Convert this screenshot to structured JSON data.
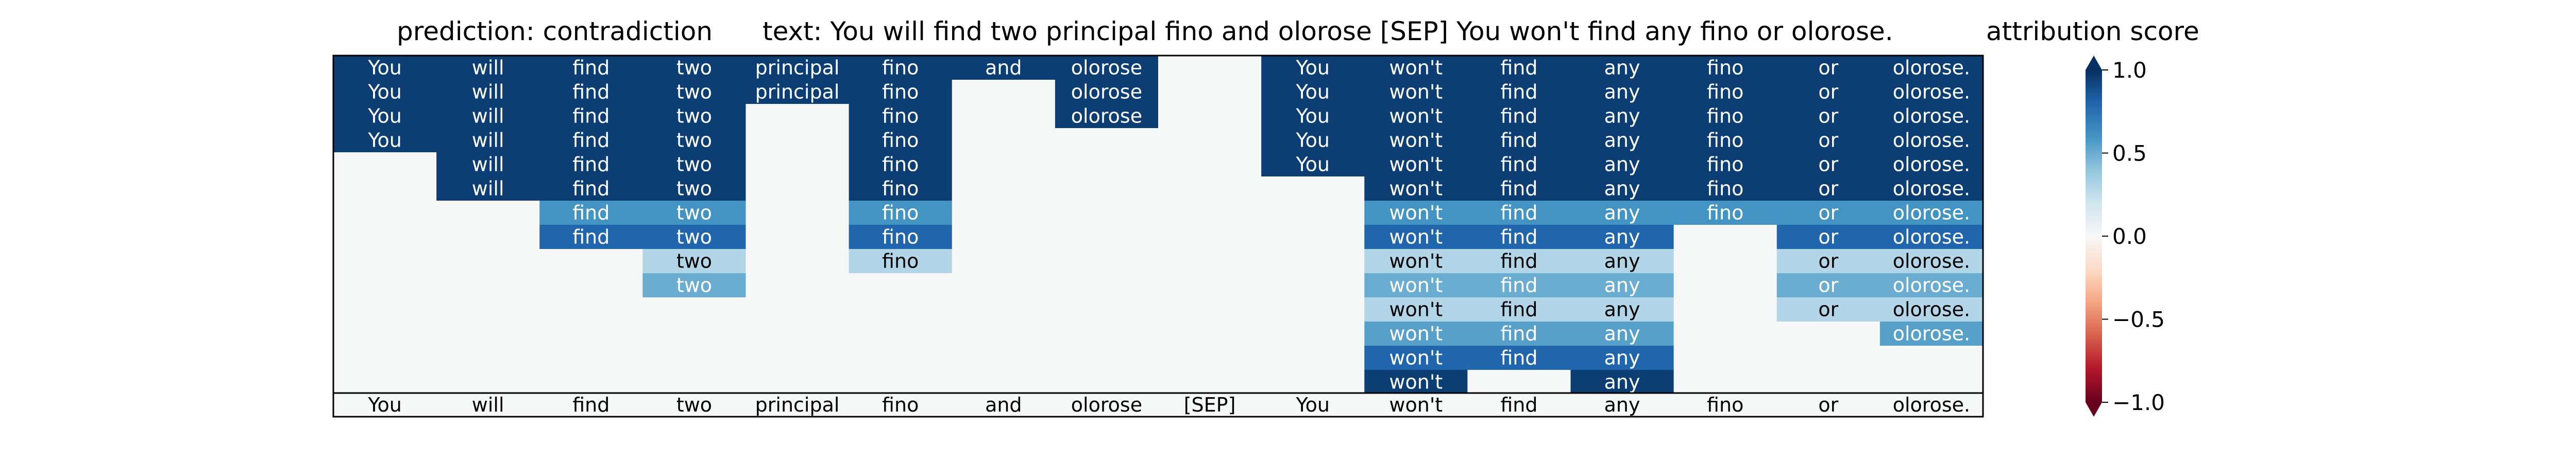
{
  "titles": {
    "prediction": "prediction:  contradiction",
    "text": "text:  You will find two principal fino and olorose [SEP] You won't find any fino or olorose.",
    "colorbar": "attribution score"
  },
  "colors": {
    "background_cell": "#f5f7f7",
    "dark_text": "#000000",
    "light_text": "#ffffff",
    "colormap": "RdBu"
  },
  "chart_data": {
    "type": "heatmap",
    "colorbar": {
      "ticks": [
        1.0,
        0.5,
        0.0,
        -0.5,
        -1.0
      ],
      "tick_labels": [
        "1.0",
        "0.5",
        "0.0",
        "−0.5",
        "−1.0"
      ],
      "vmin": -1.0,
      "vmax": 1.0,
      "extend": "both"
    },
    "columns": [
      "You",
      "will",
      "find",
      "two",
      "principal",
      "fino",
      "and",
      "olorose",
      "[SEP]",
      "You",
      "won't",
      "find",
      "any",
      "fino",
      "or",
      "olorose."
    ],
    "bottom_row": [
      "You",
      "will",
      "find",
      "two",
      "principal",
      "fino",
      "and",
      "olorose",
      "[SEP]",
      "You",
      "won't",
      "find",
      "any",
      "fino",
      "or",
      "olorose."
    ],
    "rows": [
      [
        0.95,
        0.95,
        0.95,
        0.95,
        0.95,
        0.95,
        0.95,
        0.95,
        null,
        0.95,
        0.95,
        0.95,
        0.95,
        0.95,
        0.95,
        0.95
      ],
      [
        0.95,
        0.95,
        0.95,
        0.95,
        0.95,
        0.95,
        null,
        0.95,
        null,
        0.95,
        0.95,
        0.95,
        0.95,
        0.95,
        0.95,
        0.95
      ],
      [
        0.95,
        0.95,
        0.95,
        0.95,
        null,
        0.95,
        null,
        0.95,
        null,
        0.95,
        0.95,
        0.95,
        0.95,
        0.95,
        0.95,
        0.95
      ],
      [
        0.95,
        0.95,
        0.95,
        0.95,
        null,
        0.95,
        null,
        null,
        null,
        0.95,
        0.95,
        0.95,
        0.95,
        0.95,
        0.95,
        0.95
      ],
      [
        null,
        0.95,
        0.95,
        0.95,
        null,
        0.95,
        null,
        null,
        null,
        0.95,
        0.95,
        0.95,
        0.95,
        0.95,
        0.95,
        0.95
      ],
      [
        null,
        0.95,
        0.95,
        0.95,
        null,
        0.95,
        null,
        null,
        null,
        null,
        0.95,
        0.95,
        0.95,
        0.95,
        0.95,
        0.95
      ],
      [
        null,
        null,
        0.6,
        0.6,
        null,
        0.6,
        null,
        null,
        null,
        null,
        0.6,
        0.6,
        0.6,
        0.6,
        0.6,
        0.6
      ],
      [
        null,
        null,
        0.8,
        0.8,
        null,
        0.8,
        null,
        null,
        null,
        null,
        0.8,
        0.8,
        0.8,
        null,
        0.8,
        0.8
      ],
      [
        null,
        null,
        null,
        0.3,
        null,
        0.3,
        null,
        null,
        null,
        null,
        0.3,
        0.3,
        0.3,
        null,
        0.3,
        0.3
      ],
      [
        null,
        null,
        null,
        0.5,
        null,
        null,
        null,
        null,
        null,
        null,
        0.5,
        0.5,
        0.5,
        null,
        0.5,
        0.5
      ],
      [
        null,
        null,
        null,
        null,
        null,
        null,
        null,
        null,
        null,
        null,
        0.3,
        0.3,
        0.3,
        null,
        0.3,
        0.3
      ],
      [
        null,
        null,
        null,
        null,
        null,
        null,
        null,
        null,
        null,
        null,
        0.55,
        0.55,
        0.55,
        null,
        null,
        0.55
      ],
      [
        null,
        null,
        null,
        null,
        null,
        null,
        null,
        null,
        null,
        null,
        0.8,
        0.8,
        0.8,
        null,
        null,
        null
      ],
      [
        null,
        null,
        null,
        null,
        null,
        null,
        null,
        null,
        null,
        null,
        0.95,
        null,
        0.95,
        null,
        null,
        null
      ]
    ]
  }
}
